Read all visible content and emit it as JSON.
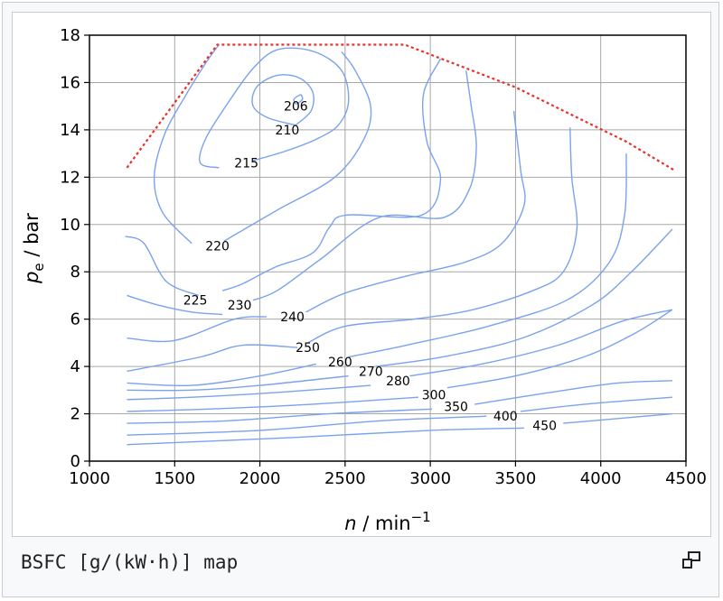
{
  "caption": "BSFC [g/(kW·h)] map",
  "icons": {
    "enlarge": "enlarge-icon"
  },
  "chart_data": {
    "type": "contour",
    "title": "",
    "xlabel": {
      "symbol": "n",
      "unit": "min",
      "sup": "−1"
    },
    "ylabel": {
      "symbol": "p",
      "sub": "e",
      "unit": "bar"
    },
    "xlim": [
      1000,
      4500
    ],
    "ylim": [
      0,
      18
    ],
    "xticks": [
      1000,
      1500,
      2000,
      2500,
      3000,
      3500,
      4000,
      4500
    ],
    "yticks": [
      0,
      2,
      4,
      6,
      8,
      10,
      12,
      14,
      16,
      18
    ],
    "grid": true,
    "colors": {
      "contour": "#7aa2ee",
      "limit": "#e8312a",
      "label": "#000000"
    },
    "limit_line": [
      [
        1220,
        12.4
      ],
      [
        1750,
        17.6
      ],
      [
        2850,
        17.6
      ],
      [
        3500,
        15.8
      ],
      [
        4150,
        13.5
      ],
      [
        4430,
        12.3
      ]
    ],
    "contours": [
      {
        "level": "206",
        "label_at": [
          2140,
          15.0
        ],
        "points": [
          [
            2240,
            15.5
          ],
          [
            2200,
            15.3
          ],
          [
            2215,
            15.1
          ],
          [
            2250,
            15.3
          ],
          [
            2240,
            15.5
          ]
        ]
      },
      {
        "level": "210",
        "label_at": [
          2090,
          14.0
        ],
        "points": [
          [
            2210,
            14.2
          ],
          [
            2050,
            14.5
          ],
          [
            1960,
            15.0
          ],
          [
            1980,
            15.8
          ],
          [
            2100,
            16.3
          ],
          [
            2230,
            16.2
          ],
          [
            2310,
            15.6
          ],
          [
            2300,
            14.8
          ],
          [
            2210,
            14.2
          ]
        ]
      },
      {
        "level": "215",
        "label_at": [
          1850,
          12.6
        ],
        "points": [
          [
            1960,
            12.7
          ],
          [
            2150,
            13.1
          ],
          [
            2330,
            13.6
          ],
          [
            2460,
            14.2
          ],
          [
            2520,
            15.2
          ],
          [
            2480,
            16.5
          ],
          [
            2320,
            17.3
          ],
          [
            2110,
            17.4
          ],
          [
            1960,
            16.6
          ],
          [
            1800,
            15.0
          ],
          [
            1680,
            13.6
          ],
          [
            1650,
            12.6
          ],
          [
            1760,
            12.4
          ]
        ]
      },
      {
        "level": "220",
        "label_at": [
          1680,
          9.1
        ],
        "points": [
          [
            1790,
            9.3
          ],
          [
            2100,
            10.6
          ],
          [
            2440,
            12.0
          ],
          [
            2610,
            13.6
          ],
          [
            2650,
            15.0
          ],
          [
            2560,
            16.5
          ],
          [
            2480,
            17.3
          ]
        ]
      },
      {
        "level": "",
        "points": [
          [
            1600,
            9.2
          ],
          [
            1430,
            10.5
          ],
          [
            1380,
            12.0
          ],
          [
            1440,
            13.8
          ],
          [
            1560,
            15.4
          ],
          [
            1680,
            16.8
          ],
          [
            1760,
            17.6
          ]
        ]
      },
      {
        "level": "225",
        "label_at": [
          1550,
          6.8
        ],
        "points": [
          [
            1640,
            7.0
          ],
          [
            1450,
            7.6
          ],
          [
            1320,
            9.2
          ],
          [
            1210,
            9.5
          ]
        ]
      },
      {
        "level": "",
        "points": [
          [
            1780,
            7.2
          ],
          [
            1900,
            7.5
          ],
          [
            2090,
            8.2
          ],
          [
            2310,
            8.8
          ],
          [
            2410,
            9.9
          ],
          [
            2510,
            10.4
          ],
          [
            2950,
            10.4
          ],
          [
            3060,
            11.9
          ],
          [
            2980,
            13.5
          ],
          [
            2960,
            15.5
          ],
          [
            3060,
            17.0
          ]
        ]
      },
      {
        "level": "230",
        "label_at": [
          1810,
          6.6
        ],
        "points": [
          [
            1780,
            6.2
          ],
          [
            1600,
            6.3
          ],
          [
            1400,
            6.6
          ],
          [
            1220,
            7.0
          ]
        ]
      },
      {
        "level": "",
        "points": [
          [
            1960,
            6.8
          ],
          [
            2100,
            7.2
          ],
          [
            2350,
            8.5
          ],
          [
            2700,
            10.3
          ],
          [
            3080,
            10.3
          ],
          [
            3230,
            11.5
          ],
          [
            3270,
            13.3
          ],
          [
            3240,
            15.0
          ],
          [
            3210,
            16.5
          ]
        ]
      },
      {
        "level": "240",
        "label_at": [
          2120,
          6.1
        ],
        "points": [
          [
            2270,
            6.3
          ],
          [
            2500,
            7.1
          ],
          [
            2850,
            7.8
          ],
          [
            3200,
            8.4
          ],
          [
            3420,
            9.2
          ],
          [
            3550,
            10.8
          ],
          [
            3530,
            12.3
          ],
          [
            3490,
            14.8
          ]
        ]
      },
      {
        "level": "",
        "points": [
          [
            2040,
            6.1
          ],
          [
            1850,
            6.0
          ],
          [
            1500,
            5.1
          ],
          [
            1220,
            5.2
          ]
        ]
      },
      {
        "level": "250",
        "label_at": [
          2210,
          4.8
        ],
        "points": [
          [
            2280,
            5.0
          ],
          [
            2500,
            5.7
          ],
          [
            2900,
            6.0
          ],
          [
            3250,
            6.4
          ],
          [
            3600,
            7.2
          ],
          [
            3780,
            8.0
          ],
          [
            3860,
            9.8
          ],
          [
            3830,
            12.0
          ],
          [
            3820,
            14.1
          ]
        ]
      },
      {
        "level": "",
        "points": [
          [
            2220,
            4.8
          ],
          [
            1900,
            4.9
          ],
          [
            1650,
            4.4
          ],
          [
            1220,
            3.8
          ]
        ]
      },
      {
        "level": "260",
        "label_at": [
          2400,
          4.2
        ],
        "points": [
          [
            2520,
            4.4
          ],
          [
            2860,
            4.9
          ],
          [
            3340,
            5.7
          ],
          [
            3800,
            6.8
          ],
          [
            4050,
            8.4
          ],
          [
            4140,
            10.4
          ],
          [
            4150,
            13.0
          ]
        ]
      },
      {
        "level": "",
        "points": [
          [
            2330,
            4.1
          ],
          [
            2000,
            3.6
          ],
          [
            1600,
            3.2
          ],
          [
            1220,
            3.3
          ]
        ]
      },
      {
        "level": "270",
        "label_at": [
          2580,
          3.8
        ],
        "points": [
          [
            2680,
            4.0
          ],
          [
            3070,
            4.4
          ],
          [
            3540,
            5.2
          ],
          [
            3950,
            6.6
          ],
          [
            4180,
            8.0
          ],
          [
            4420,
            9.8
          ]
        ]
      },
      {
        "level": "",
        "points": [
          [
            2520,
            3.6
          ],
          [
            2000,
            3.2
          ],
          [
            1600,
            3.0
          ],
          [
            1220,
            3.0
          ]
        ]
      },
      {
        "level": "280",
        "label_at": [
          2740,
          3.4
        ],
        "points": [
          [
            2880,
            3.6
          ],
          [
            3300,
            4.1
          ],
          [
            3750,
            4.9
          ],
          [
            4120,
            5.9
          ],
          [
            4420,
            6.4
          ]
        ]
      },
      {
        "level": "",
        "points": [
          [
            2650,
            3.2
          ],
          [
            2100,
            2.9
          ],
          [
            1600,
            2.7
          ],
          [
            1220,
            2.6
          ]
        ]
      },
      {
        "level": "300",
        "label_at": [
          2950,
          2.8
        ],
        "points": [
          [
            3100,
            3.1
          ],
          [
            3500,
            3.6
          ],
          [
            3900,
            4.4
          ],
          [
            4200,
            5.4
          ],
          [
            4420,
            6.4
          ]
        ]
      },
      {
        "level": "",
        "points": [
          [
            2930,
            2.7
          ],
          [
            2300,
            2.4
          ],
          [
            1700,
            2.2
          ],
          [
            1220,
            2.1
          ]
        ]
      },
      {
        "level": "350",
        "label_at": [
          3080,
          2.3
        ],
        "points": [
          [
            3260,
            2.4
          ],
          [
            3700,
            2.9
          ],
          [
            4100,
            3.3
          ],
          [
            4420,
            3.4
          ]
        ]
      },
      {
        "level": "",
        "points": [
          [
            3010,
            2.2
          ],
          [
            2400,
            2.0
          ],
          [
            1800,
            1.7
          ],
          [
            1220,
            1.6
          ]
        ]
      },
      {
        "level": "400",
        "label_at": [
          3370,
          1.9
        ],
        "points": [
          [
            3530,
            2.1
          ],
          [
            3900,
            2.4
          ],
          [
            4420,
            2.7
          ]
        ]
      },
      {
        "level": "",
        "points": [
          [
            3330,
            1.9
          ],
          [
            2700,
            1.7
          ],
          [
            2000,
            1.3
          ],
          [
            1220,
            1.1
          ]
        ]
      },
      {
        "level": "450",
        "label_at": [
          3600,
          1.5
        ],
        "points": [
          [
            3780,
            1.6
          ],
          [
            4420,
            2.0
          ]
        ]
      },
      {
        "level": "",
        "points": [
          [
            3550,
            1.4
          ],
          [
            3000,
            1.3
          ],
          [
            2200,
            1.0
          ],
          [
            1220,
            0.7
          ]
        ]
      }
    ]
  }
}
